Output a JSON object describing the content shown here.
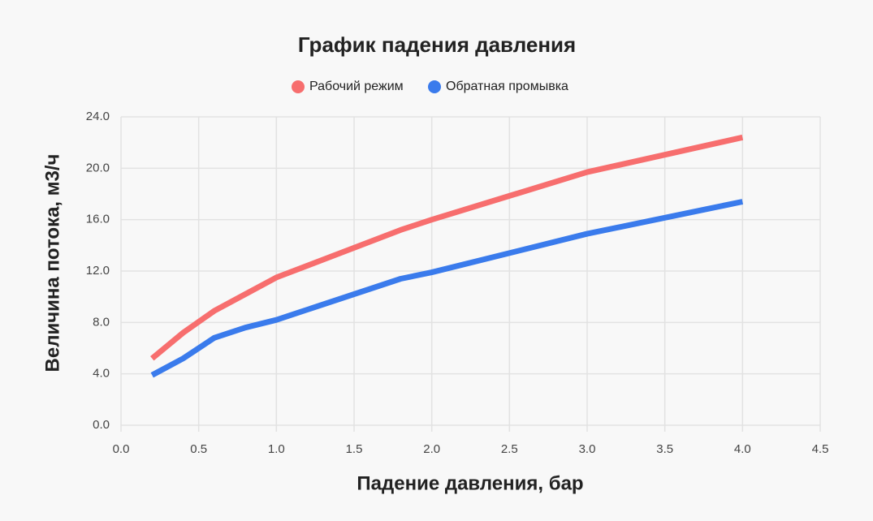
{
  "chart_data": {
    "type": "line",
    "title": "График падения давления",
    "x_label": "Падение давления, бар",
    "y_label": "Величина потока, м3/ч",
    "x": [
      0.2,
      0.4,
      0.6,
      0.8,
      1.0,
      1.8,
      2.0,
      3.0,
      4.0
    ],
    "series": [
      {
        "name": "Рабочий режим",
        "color": "#f76e6e",
        "values": [
          5.2,
          7.2,
          8.9,
          10.2,
          11.5,
          15.2,
          16.0,
          19.7,
          22.4
        ]
      },
      {
        "name": "Обратная промывка",
        "color": "#3a7bec",
        "values": [
          3.9,
          5.2,
          6.8,
          7.6,
          8.2,
          11.4,
          11.9,
          14.9,
          17.4
        ]
      }
    ],
    "xlim": [
      0,
      4.5
    ],
    "xticks": [
      {
        "value": 0,
        "label": "0.0"
      },
      {
        "value": 0.5,
        "label": "0.5"
      },
      {
        "value": 1,
        "label": "1.0"
      },
      {
        "value": 1.5,
        "label": "1.5"
      },
      {
        "value": 2,
        "label": "2.0"
      },
      {
        "value": 2.5,
        "label": "2.5"
      },
      {
        "value": 3,
        "label": "3.0"
      },
      {
        "value": 3.5,
        "label": "3.5"
      },
      {
        "value": 4,
        "label": "4.0"
      },
      {
        "value": 4.5,
        "label": "4.5"
      }
    ],
    "ylim": [
      0,
      24
    ],
    "yticks": [
      {
        "value": 0,
        "label": "0.0"
      },
      {
        "value": 4,
        "label": "4.0"
      },
      {
        "value": 8,
        "label": "8.0"
      },
      {
        "value": 12,
        "label": "12.0"
      },
      {
        "value": 16,
        "label": "16.0"
      },
      {
        "value": 20,
        "label": "20.0"
      },
      {
        "value": 24,
        "label": "24.0"
      }
    ],
    "grid": true
  }
}
